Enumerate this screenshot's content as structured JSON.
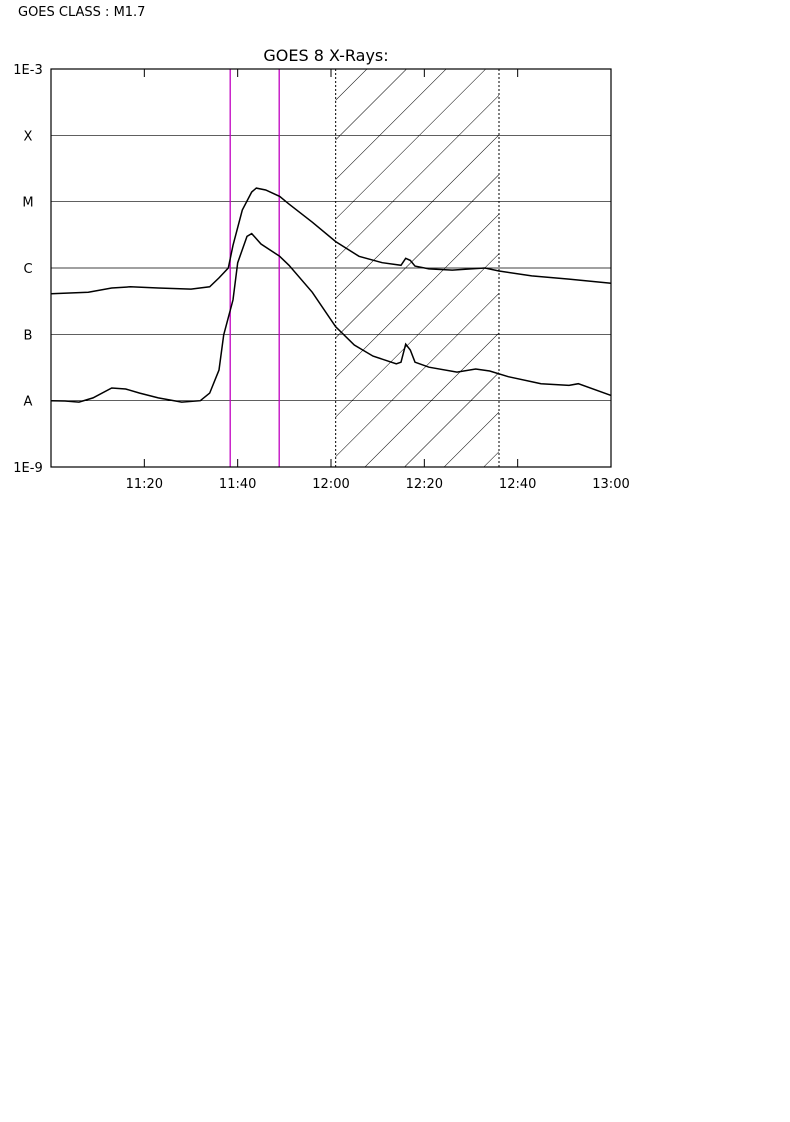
{
  "chart_data": {
    "type": "line",
    "annotation": "GOES CLASS : M1.7",
    "title": "GOES 8 X-Rays:",
    "log_y": true,
    "grid": true,
    "xlim": [
      660,
      780
    ],
    "xticks": [
      {
        "value": 680,
        "label": "11:20"
      },
      {
        "value": 700,
        "label": "11:40"
      },
      {
        "value": 720,
        "label": "12:00"
      },
      {
        "value": 740,
        "label": "12:20"
      },
      {
        "value": 760,
        "label": "12:40"
      },
      {
        "value": 780,
        "label": "13:00"
      }
    ],
    "ylim": [
      1e-09,
      0.001
    ],
    "yticks": [
      {
        "value": 1e-09,
        "label": "1E-9"
      },
      {
        "value": 1e-08,
        "label": "A"
      },
      {
        "value": 1e-07,
        "label": "B"
      },
      {
        "value": 1e-06,
        "label": "C"
      },
      {
        "value": 1e-05,
        "label": "M"
      },
      {
        "value": 0.0001,
        "label": "X"
      },
      {
        "value": 0.001,
        "label": "1E-3"
      }
    ],
    "vlines": {
      "values": [
        698.4,
        708.9
      ],
      "color": "#c000c0"
    },
    "shaded_span": [
      721,
      756
    ],
    "series": [
      {
        "color": "#000000",
        "x": [
          660,
          668,
          673,
          677,
          683,
          690,
          694,
          696,
          698,
          699,
          701,
          703,
          704,
          706,
          709,
          711,
          716,
          721,
          726,
          731,
          735,
          736,
          737,
          738,
          741,
          746,
          750,
          753,
          756,
          763,
          771,
          780
        ],
        "values": [
          4.1e-07,
          4.3e-07,
          5e-07,
          5.2e-07,
          5e-07,
          4.8e-07,
          5.2e-07,
          7.1e-07,
          1e-06,
          2.2e-06,
          7.5e-06,
          1.4e-05,
          1.6e-05,
          1.5e-05,
          1.2e-05,
          9.2e-06,
          4.9e-06,
          2.5e-06,
          1.5e-06,
          1.2e-06,
          1.1e-06,
          1.4e-06,
          1.3e-06,
          1.07e-06,
          9.7e-07,
          9.3e-07,
          9.7e-07,
          1e-06,
          9e-07,
          7.6e-07,
          6.8e-07,
          5.9e-07
        ]
      },
      {
        "color": "#000000",
        "x": [
          660,
          663,
          666,
          669,
          673,
          676,
          679,
          683,
          688,
          692,
          694,
          696,
          697,
          699,
          700,
          702,
          703,
          705,
          709,
          711,
          716,
          721,
          725,
          729,
          734,
          735,
          736,
          737,
          738,
          741,
          747,
          751,
          754,
          758,
          765,
          771,
          773,
          780
        ],
        "values": [
          1e-08,
          9.9e-09,
          9.5e-09,
          1.1e-08,
          1.55e-08,
          1.5e-08,
          1.3e-08,
          1.1e-08,
          9.5e-09,
          1e-08,
          1.3e-08,
          2.9e-08,
          9.8e-08,
          3.3e-07,
          1.2e-06,
          3e-06,
          3.3e-06,
          2.3e-06,
          1.5e-06,
          1.1e-06,
          4.3e-07,
          1.3e-07,
          6.9e-08,
          4.7e-08,
          3.6e-08,
          3.8e-08,
          7.1e-08,
          5.8e-08,
          3.8e-08,
          3.2e-08,
          2.7e-08,
          3e-08,
          2.8e-08,
          2.3e-08,
          1.8e-08,
          1.7e-08,
          1.8e-08,
          1.2e-08
        ]
      }
    ]
  }
}
